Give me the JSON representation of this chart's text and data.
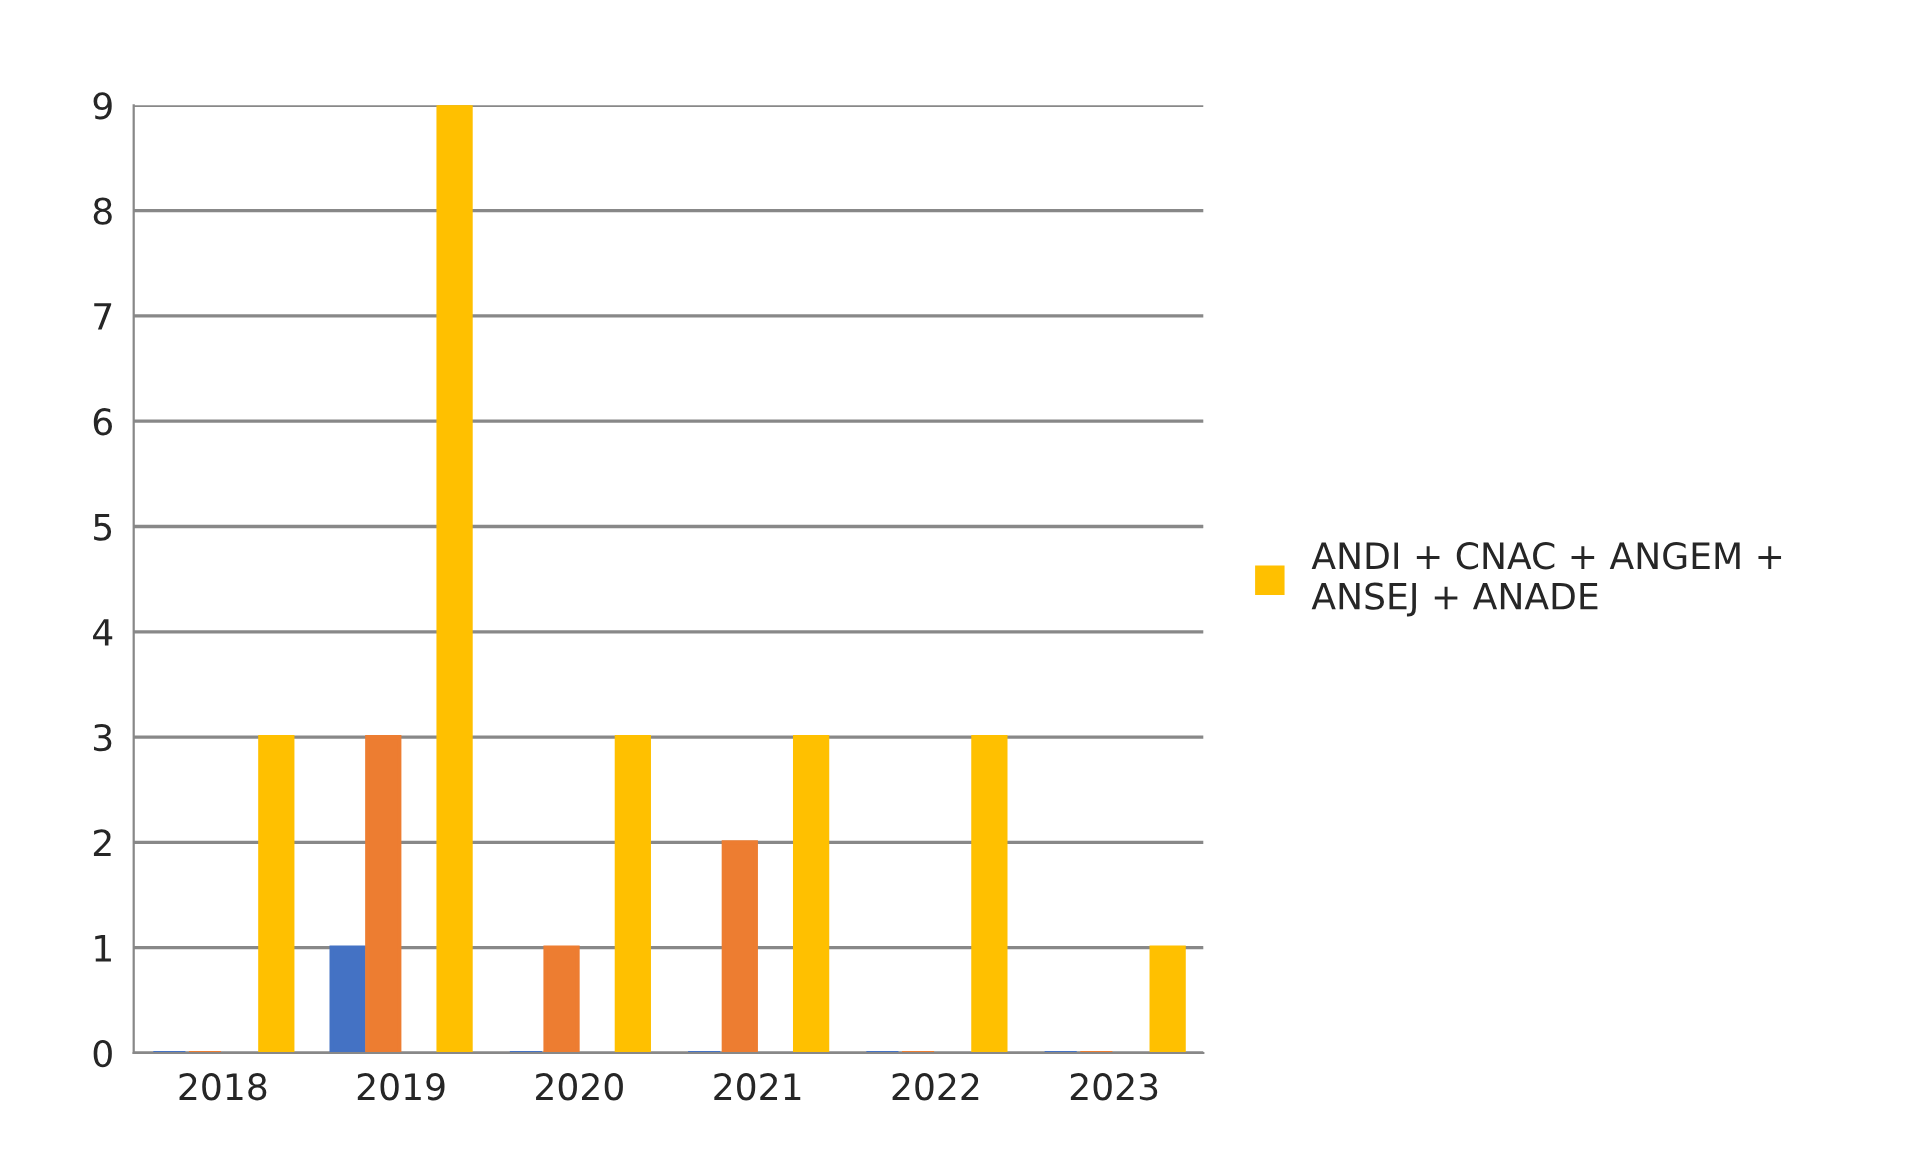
{
  "chart_data": {
    "type": "bar",
    "categories": [
      "2018",
      "2019",
      "2020",
      "2021",
      "2022",
      "2023"
    ],
    "series": [
      {
        "color": "#4472c4",
        "values": [
          0,
          1,
          0,
          0,
          0,
          0
        ]
      },
      {
        "color": "#ed7d31",
        "values": [
          0,
          3,
          1,
          2,
          0,
          0
        ]
      },
      {
        "color": "#a5a5a5",
        "values": [
          0,
          0,
          0,
          0,
          0,
          0
        ]
      },
      {
        "name": "ANDI + CNAC + ANGEM +\nANSEJ + ANADE",
        "color": "#ffc000",
        "values": [
          3,
          9,
          3,
          3,
          3,
          1
        ]
      }
    ],
    "ylim": [
      0,
      9
    ],
    "yticks": [
      0,
      1,
      2,
      3,
      4,
      5,
      6,
      7,
      8,
      9
    ],
    "grid": "y",
    "legend": "right"
  }
}
